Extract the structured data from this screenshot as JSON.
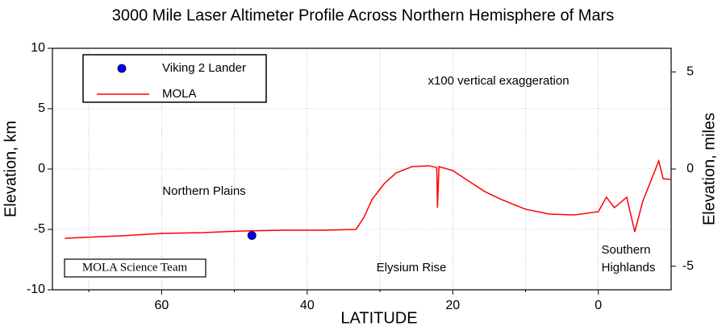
{
  "chart_data": {
    "type": "line",
    "title": "3000 Mile Laser Altimeter Profile Across Northern Hemisphere of Mars",
    "x_label": "LATITUDE",
    "y_label": "Elevation, km",
    "y2_label": "Elevation, miles",
    "xlim": [
      75,
      -10
    ],
    "xticks": [
      60,
      40,
      20,
      0
    ],
    "xminor_ticks": [
      70,
      50,
      30,
      10
    ],
    "ylim": [
      -10,
      10
    ],
    "yticks": [
      -10,
      -5,
      0,
      5,
      10
    ],
    "y2lim": [
      -6.214,
      6.214
    ],
    "y2ticks": [
      -5,
      0,
      5
    ],
    "grid": true,
    "legend": "upper left",
    "series": [
      {
        "name": "Viking 2 Lander",
        "color": "#0000ff",
        "style": "point",
        "x": [
          47.6
        ],
        "values": [
          -5.5
        ]
      },
      {
        "name": "MOLA",
        "color": "#ff0000",
        "style": "line",
        "x": [
          73.3,
          65.6,
          60,
          54.4,
          48.9,
          43.3,
          37.8,
          33.3,
          32.2,
          31.1,
          29.4,
          27.8,
          25.6,
          23.3,
          22.2,
          22.1,
          21.9,
          20,
          17.8,
          15.6,
          13.3,
          10,
          6.7,
          3.3,
          0,
          -1.1,
          -2.2,
          -3.9,
          -5,
          -6.1,
          -7.2,
          -8.3,
          -8.9,
          -10
        ],
        "values": [
          -5.73,
          -5.53,
          -5.33,
          -5.27,
          -5.13,
          -5.07,
          -5.07,
          -5.0,
          -4.0,
          -2.53,
          -1.2,
          -0.33,
          0.2,
          0.27,
          0.13,
          -3.2,
          0.2,
          -0.13,
          -1.0,
          -1.87,
          -2.53,
          -3.33,
          -3.73,
          -3.8,
          -3.53,
          -2.33,
          -3.2,
          -2.33,
          -5.2,
          -2.67,
          -1.0,
          0.67,
          -0.8,
          -0.87
        ]
      }
    ],
    "annotations": [
      "x100 vertical exaggeration",
      "Northern Plains",
      "Elysium Rise",
      "Southern",
      "Highlands"
    ],
    "credit": "MOLA Science Team"
  }
}
